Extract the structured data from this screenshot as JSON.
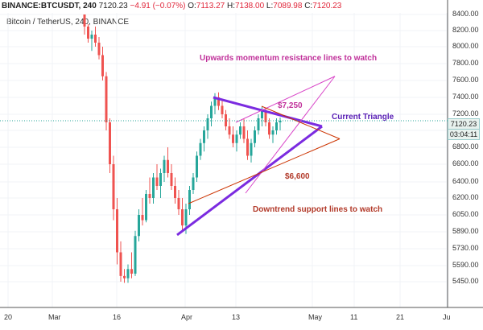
{
  "topbar": {
    "symbol": "BINANCE:BTCUSDT, 240",
    "last": "7120.23",
    "change": "−4.91 (−0.07%)",
    "o_label": "O:",
    "o": "7113.27",
    "h_label": "H:",
    "h": "7138.00",
    "l_label": "L:",
    "l": "7089.98",
    "c_label": "C:",
    "c": "7120.23"
  },
  "subtitle": "Bitcoin / TetherUS, 240, BINANCE",
  "price_box": {
    "price": "7120.23",
    "countdown": "03:04:11"
  },
  "annotations": {
    "resistance": "Upwards momentum resistance lines to watch",
    "triangle": "Current Triangle",
    "p7250": "$7,250",
    "p6600": "$6,600",
    "support": "Downtrend support lines to watch"
  },
  "colors": {
    "up": "#26a69a",
    "down": "#ef5350",
    "triangle": "#7b2be0",
    "resistance": "#d946c8",
    "support": "#cc3300",
    "ann_purple": "#c0309a",
    "ann_red": "#b23a2a"
  },
  "chart_data": {
    "type": "candlestick",
    "title": "Bitcoin / TetherUS, 240, BINANCE",
    "x_ticks": [
      "20",
      "Mar",
      "16",
      "Apr",
      "13",
      "May",
      "11",
      "21",
      "Ju"
    ],
    "y_ticks": [
      "8400.00",
      "8200.00",
      "8000.00",
      "7800.00",
      "7600.00",
      "7400.00",
      "7200.00",
      "7000.00",
      "6800.00",
      "6600.00",
      "6400.00",
      "6200.00",
      "6050.00",
      "5890.00",
      "5730.00",
      "5590.00",
      "5450.00"
    ],
    "last_price": 7120.23,
    "candles": [
      [
        8400,
        8400,
        8150,
        8250
      ],
      [
        8250,
        8280,
        8050,
        8100
      ],
      [
        8100,
        8200,
        7950,
        8150
      ],
      [
        8150,
        8250,
        8000,
        8050
      ],
      [
        8050,
        8120,
        7850,
        7900
      ],
      [
        7900,
        8000,
        7600,
        7650
      ],
      [
        7650,
        7700,
        7000,
        7100
      ],
      [
        7100,
        7150,
        6500,
        6600
      ],
      [
        6600,
        6700,
        6000,
        6100
      ],
      [
        6100,
        6200,
        5600,
        5700
      ],
      [
        5700,
        5800,
        5450,
        5500
      ],
      [
        5500,
        5560,
        5440,
        5480
      ],
      [
        5480,
        5600,
        5440,
        5560
      ],
      [
        5560,
        5700,
        5480,
        5520
      ],
      [
        5520,
        5900,
        5500,
        5850
      ],
      [
        5850,
        6100,
        5800,
        6050
      ],
      [
        6050,
        6200,
        5950,
        6000
      ],
      [
        6000,
        6300,
        5980,
        6250
      ],
      [
        6250,
        6450,
        6150,
        6200
      ],
      [
        6200,
        6500,
        6150,
        6450
      ],
      [
        6450,
        6600,
        6300,
        6350
      ],
      [
        6350,
        6550,
        6200,
        6500
      ],
      [
        6500,
        6700,
        6400,
        6650
      ],
      [
        6650,
        6800,
        6450,
        6500
      ],
      [
        6500,
        6600,
        6300,
        6350
      ],
      [
        6350,
        6450,
        6150,
        6200
      ],
      [
        6200,
        6300,
        6050,
        6100
      ],
      [
        6100,
        6200,
        5900,
        5950
      ],
      [
        5950,
        6150,
        5870,
        6100
      ],
      [
        6100,
        6350,
        6050,
        6300
      ],
      [
        6300,
        6500,
        6250,
        6450
      ],
      [
        6450,
        6750,
        6400,
        6700
      ],
      [
        6700,
        6900,
        6650,
        6850
      ],
      [
        6850,
        7050,
        6750,
        7000
      ],
      [
        7000,
        7200,
        6900,
        7150
      ],
      [
        7150,
        7350,
        7050,
        7300
      ],
      [
        7300,
        7450,
        7200,
        7400
      ],
      [
        7400,
        7460,
        7250,
        7300
      ],
      [
        7300,
        7380,
        7150,
        7200
      ],
      [
        7200,
        7250,
        7000,
        7050
      ],
      [
        7050,
        7150,
        6900,
        6950
      ],
      [
        6950,
        7050,
        6800,
        6850
      ],
      [
        6850,
        7000,
        6750,
        6950
      ],
      [
        6950,
        7100,
        6900,
        7050
      ],
      [
        7050,
        7150,
        6850,
        6900
      ],
      [
        6900,
        7000,
        6650,
        6700
      ],
      [
        6700,
        6900,
        6620,
        6850
      ],
      [
        6850,
        7050,
        6800,
        7000
      ],
      [
        7000,
        7200,
        6950,
        7150
      ],
      [
        7150,
        7290,
        7050,
        7250
      ],
      [
        7250,
        7280,
        7050,
        7100
      ],
      [
        7100,
        7150,
        6900,
        6950
      ],
      [
        6950,
        7050,
        6850,
        7000
      ],
      [
        7000,
        7150,
        6950,
        7100
      ],
      [
        7100,
        7160,
        7000,
        7120
      ]
    ],
    "lines": {
      "triangle_upper": [
        [
          7400,
          7460
        ],
        [
          7050,
          7050
        ]
      ],
      "triangle_lower": [
        [
          5860,
          5860
        ],
        [
          7050,
          7050
        ]
      ],
      "resistance_1": [
        [
          7100,
          7100
        ],
        [
          7650,
          7650
        ]
      ],
      "support_1": [
        [
          6150,
          6150
        ],
        [
          6900,
          6900
        ]
      ]
    }
  }
}
